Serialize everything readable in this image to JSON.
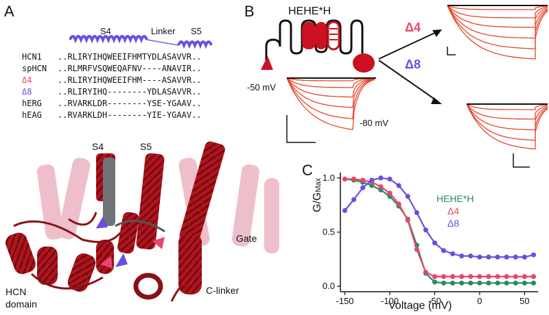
{
  "panels": {
    "a": "A",
    "b": "B",
    "c": "C"
  },
  "alignment": {
    "helix_labels": {
      "s4": "S4",
      "linker": "Linker",
      "s5": "S5"
    },
    "rows": [
      {
        "name": "HCN1",
        "seq": "..RLIRYIHQWEEIFHMTYDLASAVVR..",
        "color": "#111111"
      },
      {
        "name": "spHCN",
        "seq": "..RLMRFVSQWEQAFNV----ANAVIR..",
        "color": "#111111"
      },
      {
        "name": "Δ4",
        "seq": "..RLIRYIHQWEEIFHM----ASAVVR..",
        "color": "#e8476a"
      },
      {
        "name": "Δ8",
        "seq": "..RLIRYIHQ--------YDLASAVVR..",
        "color": "#6a4fe0"
      },
      {
        "name": "hERG",
        "seq": "..RVARKLDR--------YSE-YGAAV..",
        "color": "#111111"
      },
      {
        "name": "hEAG",
        "seq": "..RVARKLDH--------YIE-YGAAV..",
        "color": "#111111"
      }
    ]
  },
  "structure": {
    "labels": {
      "s4": "S4",
      "s5": "S5",
      "gate": "Gate",
      "hcn_domain_1": "HCN",
      "hcn_domain_2": "domain",
      "c_linker": "C-linker"
    }
  },
  "panel_b": {
    "construct": "HEHE*H",
    "v_hold": "-50 mV",
    "v_tail": "-80 mV",
    "delta4": "Δ4",
    "delta8": "Δ8"
  },
  "colors": {
    "hehe": "#2a8a62",
    "delta4": "#e8476a",
    "delta8": "#6a4fe0",
    "trace_red": "#e8442a",
    "helix_red": "#b0141c"
  },
  "chart_data": {
    "type": "line",
    "ylabel": "G/G",
    "ylabel_sub": "Max",
    "xlabel": "Voltage (mV)",
    "xlim": [
      -155,
      65
    ],
    "ylim": [
      -0.05,
      1.05
    ],
    "xticks": [
      -150,
      -100,
      -50,
      0,
      50
    ],
    "yticks": [
      0.0,
      0.5,
      1.0
    ],
    "ytick_labels": [
      "0.0",
      "0.5",
      "1.0"
    ],
    "legend_position": "upper-right",
    "series": [
      {
        "name": "HEHE*H",
        "color": "#2a8a62",
        "x": [
          -150,
          -140,
          -130,
          -120,
          -110,
          -100,
          -90,
          -80,
          -70,
          -60,
          -50,
          -40,
          -30,
          -20,
          -10,
          0,
          10,
          20,
          30,
          40,
          50,
          60
        ],
        "y": [
          0.99,
          0.98,
          0.96,
          0.93,
          0.89,
          0.83,
          0.74,
          0.62,
          0.38,
          0.12,
          0.04,
          0.03,
          0.03,
          0.03,
          0.03,
          0.03,
          0.03,
          0.03,
          0.03,
          0.03,
          0.03,
          0.03
        ]
      },
      {
        "name": "Δ4",
        "color": "#e8476a",
        "x": [
          -150,
          -140,
          -130,
          -120,
          -110,
          -100,
          -90,
          -80,
          -70,
          -60,
          -50,
          -40,
          -30,
          -20,
          -10,
          0,
          10,
          20,
          30,
          40,
          50,
          60
        ],
        "y": [
          0.99,
          0.99,
          0.98,
          0.96,
          0.92,
          0.86,
          0.76,
          0.61,
          0.34,
          0.13,
          0.09,
          0.09,
          0.09,
          0.09,
          0.09,
          0.09,
          0.09,
          0.09,
          0.09,
          0.09,
          0.09,
          0.09
        ]
      },
      {
        "name": "Δ8",
        "color": "#6a4fe0",
        "x": [
          -150,
          -140,
          -130,
          -120,
          -110,
          -100,
          -90,
          -80,
          -70,
          -60,
          -50,
          -40,
          -30,
          -20,
          -10,
          0,
          10,
          20,
          30,
          40,
          50,
          60
        ],
        "y": [
          0.7,
          0.8,
          0.91,
          0.98,
          1.0,
          0.99,
          0.93,
          0.83,
          0.68,
          0.52,
          0.4,
          0.33,
          0.3,
          0.28,
          0.28,
          0.27,
          0.27,
          0.27,
          0.27,
          0.27,
          0.27,
          0.29
        ]
      }
    ]
  }
}
